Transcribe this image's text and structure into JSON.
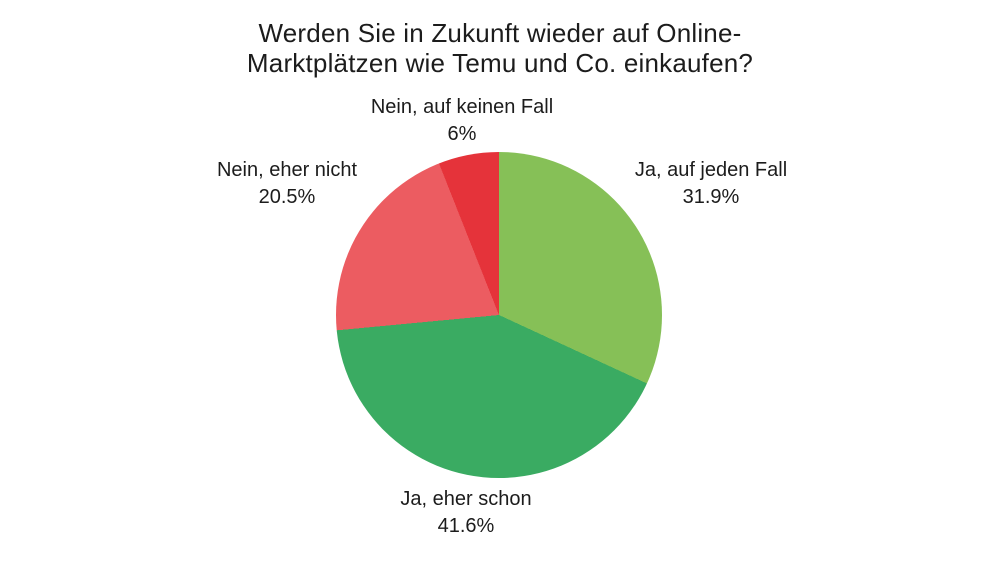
{
  "chart_data": {
    "type": "pie",
    "title": "Werden Sie in Zukunft wieder auf Online-Marktplätzen wie Temu und Co. einkaufen?",
    "title_lines": [
      "Werden Sie in Zukunft wieder auf Online-",
      "Marktplätzen wie Temu und Co. einkaufen?"
    ],
    "slices": [
      {
        "label": "Ja, auf jeden Fall",
        "value": 31.9,
        "display": "31.9%",
        "color": "#86c057"
      },
      {
        "label": "Ja, eher schon",
        "value": 41.6,
        "display": "41.6%",
        "color": "#3aab62"
      },
      {
        "label": "Nein, eher nicht",
        "value": 20.5,
        "display": "20.5%",
        "color": "#ec5c61"
      },
      {
        "label": "Nein, auf keinen Fall",
        "value": 6,
        "display": "6%",
        "color": "#e5333a"
      }
    ],
    "start_angle_deg": 0,
    "direction": "clockwise",
    "legend_position": "labels-outside",
    "background": "#ffffff",
    "text_color": "#1c1c1c"
  }
}
